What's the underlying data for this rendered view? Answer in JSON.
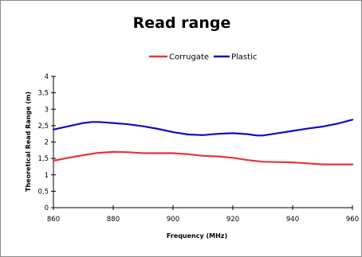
{
  "chart_data": {
    "type": "line",
    "title": "Read range",
    "xlabel": "Frequency (MHz)",
    "ylabel": "Theoretical Read Range (m)",
    "xlim": [
      860,
      960
    ],
    "ylim": [
      0,
      4
    ],
    "x_ticks": [
      860,
      880,
      900,
      920,
      940,
      960
    ],
    "y_ticks": [
      0,
      0.5,
      1,
      1.5,
      2,
      2.5,
      3,
      3.5,
      4
    ],
    "y_tick_labels": [
      "0",
      "0,5",
      "1",
      "1,5",
      "2",
      "2,5",
      "3",
      "3,5",
      "4"
    ],
    "grid": false,
    "legend_position": "top-center",
    "series": [
      {
        "name": "Corrugate",
        "color": "#e8323c",
        "x": [
          860,
          865,
          870,
          875,
          880,
          885,
          890,
          895,
          900,
          905,
          910,
          915,
          920,
          925,
          930,
          935,
          940,
          945,
          950,
          955,
          960
        ],
        "y": [
          1.43,
          1.52,
          1.6,
          1.67,
          1.7,
          1.69,
          1.66,
          1.66,
          1.66,
          1.63,
          1.58,
          1.56,
          1.52,
          1.45,
          1.4,
          1.39,
          1.38,
          1.35,
          1.32,
          1.32,
          1.32
        ]
      },
      {
        "name": "Plastic",
        "color": "#0c0cc8",
        "x": [
          860,
          865,
          870,
          873,
          875,
          880,
          885,
          890,
          895,
          900,
          905,
          910,
          915,
          920,
          925,
          928,
          930,
          935,
          940,
          945,
          950,
          955,
          960
        ],
        "y": [
          2.38,
          2.48,
          2.58,
          2.61,
          2.61,
          2.58,
          2.54,
          2.48,
          2.4,
          2.3,
          2.23,
          2.21,
          2.25,
          2.27,
          2.24,
          2.2,
          2.2,
          2.27,
          2.34,
          2.41,
          2.47,
          2.56,
          2.68
        ]
      }
    ]
  }
}
